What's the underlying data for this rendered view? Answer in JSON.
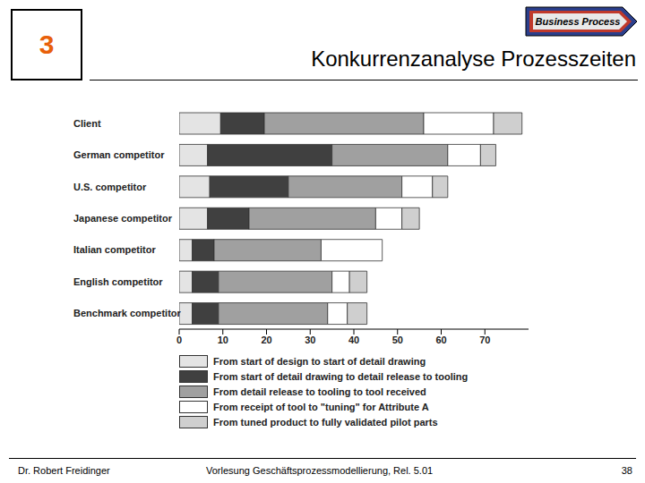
{
  "slide_number": "3",
  "logo": "Business Process",
  "title": "Konkurrenzanalyse Prozesszeiten",
  "chart_data": {
    "type": "bar",
    "orientation": "horizontal",
    "stacked": true,
    "categories": [
      "Client",
      "German competitor",
      "U.S. competitor",
      "Japanese competitor",
      "Italian competitor",
      "English competitor",
      "Benchmark competitor"
    ],
    "series": [
      {
        "name": "From start of design to start of detail drawing",
        "color": "#e4e4e4",
        "values": [
          9.5,
          6.5,
          7,
          6.5,
          3,
          3,
          3
        ]
      },
      {
        "name": "From start of detail drawing to detail release to tooling",
        "color": "#404040",
        "values": [
          10,
          28.5,
          18,
          9.5,
          5,
          6,
          6
        ]
      },
      {
        "name": "From detail release to tooling to tool received",
        "color": "#a0a0a0",
        "values": [
          36.5,
          26.5,
          26,
          29,
          24.5,
          26,
          25
        ]
      },
      {
        "name": "From receipt of tool to \"tuning\" for Attribute A",
        "color": "#ffffff",
        "values": [
          16,
          7.5,
          7,
          6,
          14,
          4,
          4.5
        ]
      },
      {
        "name": "From tuned product to fully validated pilot parts",
        "color": "#cfcfcf",
        "values": [
          6.5,
          3.5,
          3.5,
          4,
          0,
          4,
          4.5
        ]
      }
    ],
    "xlim": [
      0,
      80
    ],
    "xticks": [
      0,
      10,
      20,
      30,
      40,
      50,
      60,
      70
    ],
    "grid": false
  },
  "footer": {
    "author": "Dr. Robert Freidinger",
    "course": "Vorlesung Geschäftsprozessmodellierung, Rel. 5.01",
    "page": "38"
  }
}
